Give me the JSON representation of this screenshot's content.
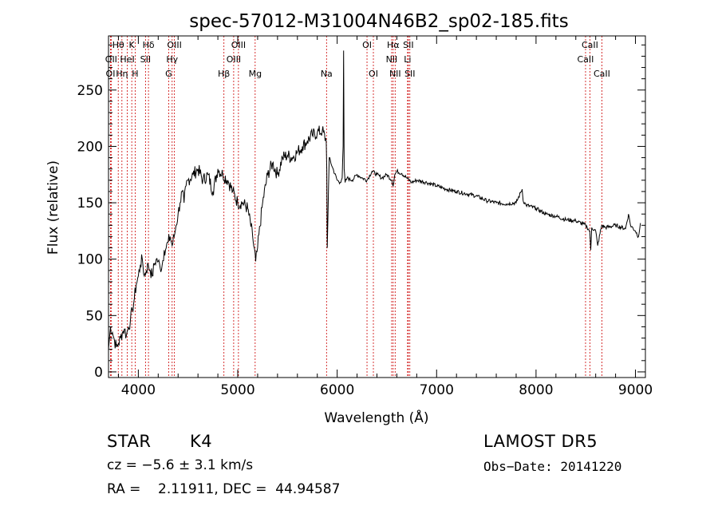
{
  "chart_data": {
    "type": "line",
    "title": "spec-57012-M31004N46B2_sp02-185.fits",
    "xlabel": "Wavelength (Å)",
    "ylabel": "Flux (relative)",
    "xlim": [
      3700,
      9100
    ],
    "ylim": [
      -5,
      298
    ],
    "x_ticks": [
      4000,
      5000,
      6000,
      7000,
      8000,
      9000
    ],
    "y_ticks": [
      0,
      50,
      100,
      150,
      200,
      250
    ],
    "grid": false,
    "line_color": "#000000",
    "line_marker_color": "#cc0000",
    "series": [
      {
        "x": [
          3700,
          3720,
          3740,
          3760,
          3780,
          3800,
          3820,
          3840,
          3860,
          3880,
          3900,
          3920,
          3940,
          3960,
          3980,
          4000,
          4020,
          4040,
          4060,
          4080,
          4100,
          4120,
          4140,
          4160,
          4180,
          4200,
          4220,
          4240,
          4260,
          4280,
          4300,
          4320,
          4340,
          4360,
          4380,
          4400,
          4420,
          4440,
          4460,
          4480,
          4500,
          4550,
          4600,
          4650,
          4700,
          4750,
          4800,
          4850,
          4900,
          4950,
          5000,
          5050,
          5100,
          5150,
          5180,
          5200,
          5250,
          5300,
          5350,
          5400,
          5450,
          5500,
          5550,
          5600,
          5650,
          5700,
          5750,
          5800,
          5850,
          5890,
          5895,
          5900,
          5920,
          5950,
          6000,
          6030,
          6050,
          6060,
          6065,
          6070,
          6080,
          6100,
          6150,
          6200,
          6250,
          6300,
          6350,
          6400,
          6450,
          6500,
          6550,
          6563,
          6580,
          6600,
          6650,
          6700,
          6750,
          6800,
          6900,
          7000,
          7100,
          7200,
          7300,
          7400,
          7500,
          7600,
          7700,
          7800,
          7850,
          7860,
          7870,
          7900,
          8000,
          8100,
          8200,
          8300,
          8400,
          8500,
          8540,
          8550,
          8560,
          8600,
          8620,
          8660,
          8700,
          8800,
          8900,
          8930,
          8950,
          9000,
          9030,
          9050
        ],
        "y": [
          20,
          40,
          35,
          28,
          22,
          25,
          30,
          35,
          38,
          32,
          40,
          45,
          55,
          65,
          78,
          85,
          95,
          100,
          85,
          90,
          95,
          90,
          85,
          95,
          100,
          98,
          92,
          95,
          108,
          110,
          115,
          120,
          112,
          120,
          130,
          140,
          150,
          160,
          150,
          165,
          170,
          175,
          180,
          170,
          175,
          160,
          180,
          175,
          170,
          160,
          150,
          150,
          145,
          120,
          98,
          110,
          150,
          175,
          185,
          175,
          190,
          192,
          190,
          195,
          200,
          205,
          210,
          212,
          214,
          205,
          180,
          110,
          190,
          182,
          170,
          168,
          172,
          200,
          285,
          180,
          168,
          172,
          170,
          175,
          172,
          170,
          178,
          175,
          172,
          175,
          170,
          165,
          175,
          178,
          176,
          172,
          168,
          170,
          168,
          165,
          162,
          160,
          158,
          156,
          152,
          150,
          149,
          150,
          160,
          162,
          152,
          148,
          145,
          140,
          138,
          135,
          134,
          130,
          125,
          108,
          128,
          125,
          112,
          130,
          128,
          130,
          127,
          140,
          130,
          125,
          120,
          132
        ]
      }
    ],
    "spectral_lines": [
      {
        "label": "Hθ",
        "wavelength": 3798,
        "row": 0
      },
      {
        "label": "K",
        "wavelength": 3934,
        "row": 0
      },
      {
        "label": "Hδ",
        "wavelength": 4102,
        "row": 0
      },
      {
        "label": "OIII",
        "wavelength": 4363,
        "row": 0
      },
      {
        "label": "OIII",
        "wavelength": 5007,
        "row": 0
      },
      {
        "label": "OI",
        "wavelength": 6300,
        "row": 0
      },
      {
        "label": "Hα",
        "wavelength": 6563,
        "row": 0
      },
      {
        "label": "SII",
        "wavelength": 6716,
        "row": 0
      },
      {
        "label": "CaII",
        "wavelength": 8542,
        "row": 0
      },
      {
        "label": "OII",
        "wavelength": 3727,
        "row": 1
      },
      {
        "label": "HeI",
        "wavelength": 3889,
        "row": 1
      },
      {
        "label": "SII",
        "wavelength": 4072,
        "row": 1
      },
      {
        "label": "Hγ",
        "wavelength": 4340,
        "row": 1
      },
      {
        "label": "OIII",
        "wavelength": 4959,
        "row": 1
      },
      {
        "label": "NII",
        "wavelength": 6548,
        "row": 1
      },
      {
        "label": "Li",
        "wavelength": 6708,
        "row": 1
      },
      {
        "label": "CaII",
        "wavelength": 8498,
        "row": 1
      },
      {
        "label": "OI",
        "wavelength": 3720,
        "row": 2
      },
      {
        "label": "Hη",
        "wavelength": 3835,
        "row": 2
      },
      {
        "label": "H",
        "wavelength": 3968,
        "row": 2
      },
      {
        "label": "G",
        "wavelength": 4305,
        "row": 2
      },
      {
        "label": "Hβ",
        "wavelength": 4861,
        "row": 2
      },
      {
        "label": "Mg",
        "wavelength": 5175,
        "row": 2
      },
      {
        "label": "Na",
        "wavelength": 5893,
        "row": 2
      },
      {
        "label": "OI",
        "wavelength": 6364,
        "row": 2
      },
      {
        "label": "NII",
        "wavelength": 6583,
        "row": 2
      },
      {
        "label": "SII",
        "wavelength": 6731,
        "row": 2
      },
      {
        "label": "CaII",
        "wavelength": 8662,
        "row": 2
      }
    ]
  },
  "info": {
    "object_class": "STAR",
    "subclass": "K4",
    "survey": "LAMOST DR5",
    "redshift": "cz = −5.6 ± 3.1 km/s",
    "obs_date": "Obs−Date: 20141220",
    "coords": "RA =    2.11911, DEC =  44.94587"
  }
}
